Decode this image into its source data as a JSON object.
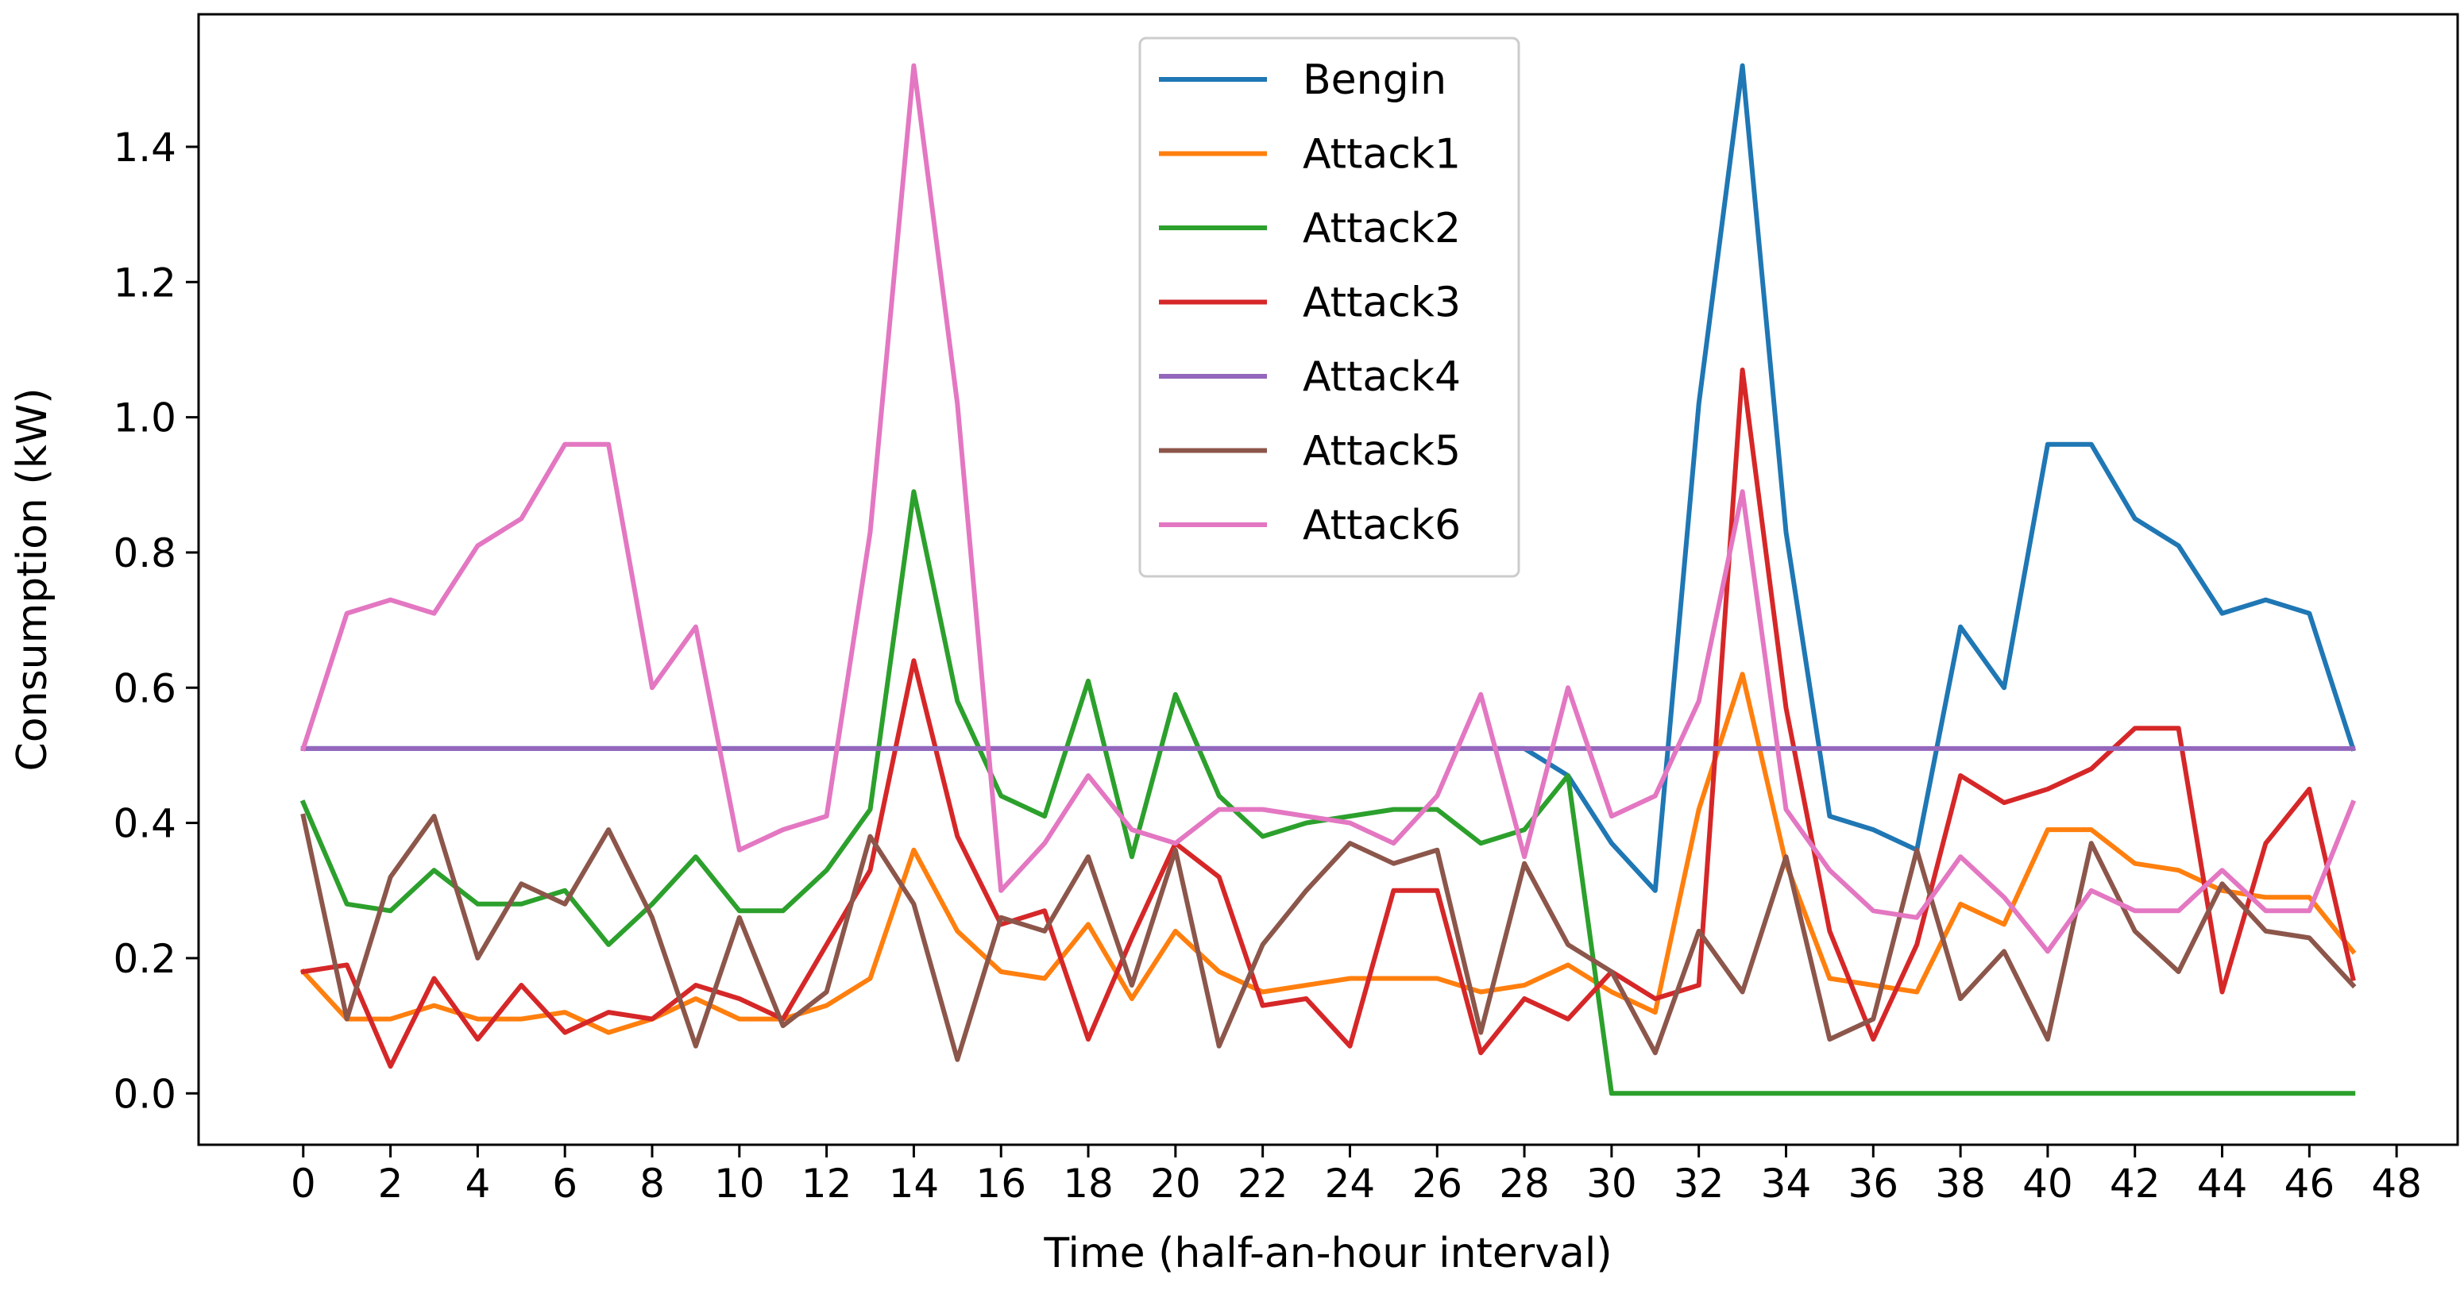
{
  "chart_data": {
    "type": "line",
    "title": "",
    "xlabel": "Time (half-an-hour interval)",
    "ylabel": "Consumption (kW)",
    "xlim": [
      -2.4,
      49.4
    ],
    "ylim": [
      -0.076,
      1.596
    ],
    "grid": false,
    "legend_position": "top-center",
    "x": [
      0,
      1,
      2,
      3,
      4,
      5,
      6,
      7,
      8,
      9,
      10,
      11,
      12,
      13,
      14,
      15,
      16,
      17,
      18,
      19,
      20,
      21,
      22,
      23,
      24,
      25,
      26,
      27,
      28,
      29,
      30,
      31,
      32,
      33,
      34,
      35,
      36,
      37,
      38,
      39,
      40,
      41,
      42,
      43,
      44,
      45,
      46,
      47
    ],
    "xticks": [
      0,
      2,
      4,
      6,
      8,
      10,
      12,
      14,
      16,
      18,
      20,
      22,
      24,
      26,
      28,
      30,
      32,
      34,
      36,
      38,
      40,
      42,
      44,
      46,
      48
    ],
    "xtick_labels": [
      "0",
      "2",
      "4",
      "6",
      "8",
      "10",
      "12",
      "14",
      "16",
      "18",
      "20",
      "22",
      "24",
      "26",
      "28",
      "30",
      "32",
      "34",
      "36",
      "38",
      "40",
      "42",
      "44",
      "46",
      "48"
    ],
    "yticks": [
      0.0,
      0.2,
      0.4,
      0.6,
      0.8,
      1.0,
      1.2,
      1.4
    ],
    "ytick_labels": [
      "0.0",
      "0.2",
      "0.4",
      "0.6",
      "0.8",
      "1.0",
      "1.2",
      "1.4"
    ],
    "series": [
      {
        "name": "Bengin",
        "color": "#1f77b4",
        "values": [
          0.51,
          0.51,
          0.51,
          0.51,
          0.51,
          0.51,
          0.51,
          0.51,
          0.51,
          0.51,
          0.51,
          0.51,
          0.51,
          0.51,
          0.51,
          0.51,
          0.51,
          0.51,
          0.51,
          0.51,
          0.51,
          0.51,
          0.51,
          0.51,
          0.51,
          0.51,
          0.51,
          0.51,
          0.51,
          0.47,
          0.37,
          0.3,
          1.02,
          1.52,
          0.83,
          0.41,
          0.39,
          0.36,
          0.69,
          0.6,
          0.96,
          0.96,
          0.85,
          0.81,
          0.71,
          0.73,
          0.71,
          0.51
        ]
      },
      {
        "name": "Attack1",
        "color": "#ff7f0e",
        "values": [
          0.18,
          0.11,
          0.11,
          0.13,
          0.11,
          0.11,
          0.12,
          0.09,
          0.11,
          0.14,
          0.11,
          0.11,
          0.13,
          0.17,
          0.36,
          0.24,
          0.18,
          0.17,
          0.25,
          0.14,
          0.24,
          0.18,
          0.15,
          0.16,
          0.17,
          0.17,
          0.17,
          0.15,
          0.16,
          0.19,
          0.15,
          0.12,
          0.42,
          0.62,
          0.34,
          0.17,
          0.16,
          0.15,
          0.28,
          0.25,
          0.39,
          0.39,
          0.34,
          0.33,
          0.3,
          0.29,
          0.29,
          0.21
        ]
      },
      {
        "name": "Attack2",
        "color": "#2ca02c",
        "values": [
          0.43,
          0.28,
          0.27,
          0.33,
          0.28,
          0.28,
          0.3,
          0.22,
          0.28,
          0.35,
          0.27,
          0.27,
          0.33,
          0.42,
          0.89,
          0.58,
          0.44,
          0.41,
          0.61,
          0.35,
          0.59,
          0.44,
          0.38,
          0.4,
          0.41,
          0.42,
          0.42,
          0.37,
          0.39,
          0.47,
          0.0,
          0.0,
          0.0,
          0.0,
          0.0,
          0.0,
          0.0,
          0.0,
          0.0,
          0.0,
          0.0,
          0.0,
          0.0,
          0.0,
          0.0,
          0.0,
          0.0,
          0.0
        ]
      },
      {
        "name": "Attack3",
        "color": "#d62728",
        "values": [
          0.18,
          0.19,
          0.04,
          0.17,
          0.08,
          0.16,
          0.09,
          0.12,
          0.11,
          0.16,
          0.14,
          0.11,
          0.22,
          0.33,
          0.64,
          0.38,
          0.25,
          0.27,
          0.08,
          0.23,
          0.37,
          0.32,
          0.13,
          0.14,
          0.07,
          0.3,
          0.3,
          0.06,
          0.14,
          0.11,
          0.18,
          0.14,
          0.16,
          1.07,
          0.57,
          0.24,
          0.08,
          0.22,
          0.47,
          0.43,
          0.45,
          0.48,
          0.54,
          0.54,
          0.15,
          0.37,
          0.45,
          0.17
        ]
      },
      {
        "name": "Attack4",
        "color": "#9467bd",
        "values": [
          0.51,
          0.51,
          0.51,
          0.51,
          0.51,
          0.51,
          0.51,
          0.51,
          0.51,
          0.51,
          0.51,
          0.51,
          0.51,
          0.51,
          0.51,
          0.51,
          0.51,
          0.51,
          0.51,
          0.51,
          0.51,
          0.51,
          0.51,
          0.51,
          0.51,
          0.51,
          0.51,
          0.51,
          0.51,
          0.51,
          0.51,
          0.51,
          0.51,
          0.51,
          0.51,
          0.51,
          0.51,
          0.51,
          0.51,
          0.51,
          0.51,
          0.51,
          0.51,
          0.51,
          0.51,
          0.51,
          0.51,
          0.51
        ]
      },
      {
        "name": "Attack5",
        "color": "#8c564b",
        "values": [
          0.41,
          0.11,
          0.32,
          0.41,
          0.2,
          0.31,
          0.28,
          0.39,
          0.26,
          0.07,
          0.26,
          0.1,
          0.15,
          0.38,
          0.28,
          0.05,
          0.26,
          0.24,
          0.35,
          0.16,
          0.36,
          0.07,
          0.22,
          0.3,
          0.37,
          0.34,
          0.36,
          0.09,
          0.34,
          0.22,
          0.18,
          0.06,
          0.24,
          0.15,
          0.35,
          0.08,
          0.11,
          0.36,
          0.14,
          0.21,
          0.08,
          0.37,
          0.24,
          0.18,
          0.31,
          0.24,
          0.23,
          0.16
        ]
      },
      {
        "name": "Attack6",
        "color": "#e377c2",
        "values": [
          0.51,
          0.71,
          0.73,
          0.71,
          0.81,
          0.85,
          0.96,
          0.96,
          0.6,
          0.69,
          0.36,
          0.39,
          0.41,
          0.83,
          1.52,
          1.02,
          0.3,
          0.37,
          0.47,
          0.39,
          0.37,
          0.42,
          0.42,
          0.41,
          0.4,
          0.37,
          0.44,
          0.59,
          0.35,
          0.6,
          0.41,
          0.44,
          0.58,
          0.89,
          0.42,
          0.33,
          0.27,
          0.26,
          0.35,
          0.29,
          0.21,
          0.3,
          0.27,
          0.27,
          0.33,
          0.27,
          0.27,
          0.43
        ]
      }
    ]
  }
}
